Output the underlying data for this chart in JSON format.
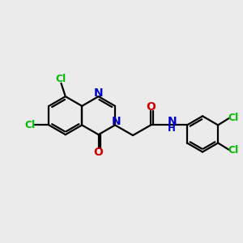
{
  "background_color": "#EBEBEB",
  "bond_color": "#000000",
  "n_color": "#0000CC",
  "o_color": "#CC0000",
  "cl_color": "#00BB00",
  "line_width": 1.6,
  "figsize": [
    3.0,
    3.0
  ],
  "dpi": 100,
  "xlim": [
    0,
    10
  ],
  "ylim": [
    0,
    10
  ]
}
